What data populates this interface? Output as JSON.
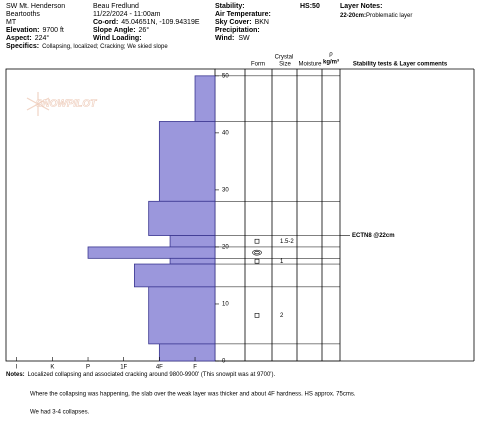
{
  "header": {
    "location": "SW Mt. Henderson",
    "range": "Beartooths",
    "state": "MT",
    "elevation": {
      "label": "Elevation:",
      "value": "9700 ft"
    },
    "aspect": {
      "label": "Aspect:",
      "value": "224°"
    },
    "specifics": {
      "label": "Specifics:",
      "value": "Collapsing, localized; Cracking; We skied slope"
    },
    "observer": "Beau  Fredlund",
    "datetime": "11/22/2024 - 11:00am",
    "coords": {
      "label": "Co-ord:",
      "value": "45.04651N, -109.94319E"
    },
    "slope_angle": {
      "label": "Slope Angle:",
      "value": "26°"
    },
    "wind_loading": "Wind Loading:",
    "stability": "Stability:",
    "hs": "HS:50",
    "air_temperature": "Air Temperature:",
    "sky_cover": {
      "label": "Sky Cover:",
      "value": "BKN"
    },
    "precipitation": "Precipitation:",
    "wind": {
      "label": "Wind:",
      "value": "SW"
    },
    "layer_notes_title": "Layer Notes:",
    "layer_note": {
      "label": "22-20cm:",
      "value": "Problematic layer"
    }
  },
  "columns": {
    "crystal": "Crystal",
    "form": "Form",
    "size": "Size",
    "moisture": "Moisture",
    "rho": "ρ",
    "density_unit": "kg/m³",
    "comments": "Stability tests & Layer comments"
  },
  "watermark": "SNOWPILOT",
  "chart_data": {
    "type": "profile",
    "color": "#9b97dc",
    "edge_color": "#3a3690",
    "ylim": [
      0,
      51.2
    ],
    "yticks": [
      0,
      10,
      20,
      30,
      40,
      50
    ],
    "xlim": [
      6.3,
      0.44
    ],
    "xticks": [
      {
        "value": 6,
        "label": "I"
      },
      {
        "value": 5,
        "label": "K"
      },
      {
        "value": 4,
        "label": "P"
      },
      {
        "value": 3,
        "label": "1F"
      },
      {
        "value": 2,
        "label": "4F"
      },
      {
        "value": 1,
        "label": "F"
      }
    ],
    "layers": [
      {
        "top": 50,
        "bottom": 42,
        "hardness": 1
      },
      {
        "top": 42,
        "bottom": 28,
        "hardness": 2
      },
      {
        "top": 28,
        "bottom": 22,
        "hardness": 2.3
      },
      {
        "top": 22,
        "bottom": 20,
        "hardness": 1.7,
        "form": "square",
        "size": "1.5-2"
      },
      {
        "top": 20,
        "bottom": 18,
        "hardness": 4,
        "form": "circle"
      },
      {
        "top": 18,
        "bottom": 17,
        "hardness": 1.7,
        "form": "square",
        "size": "1"
      },
      {
        "top": 17,
        "bottom": 13,
        "hardness": 2.7
      },
      {
        "top": 13,
        "bottom": 3,
        "hardness": 2.3,
        "form": "square",
        "size": "2"
      },
      {
        "top": 3,
        "bottom": 0,
        "hardness": 2
      }
    ],
    "tests": [
      {
        "text": "ECTN8 @22cm",
        "depth": 22
      }
    ]
  },
  "notes": {
    "label": "Notes:",
    "lines": [
      "Localized collapsing and associated cracking around 9800-9900' (This snowpit was at 9700').",
      "Where the collapsing was happening, the slab over the weak layer was thicker and about 4F hardness.  HS approx. 75cms.",
      "We had 3-4 collapses."
    ]
  }
}
